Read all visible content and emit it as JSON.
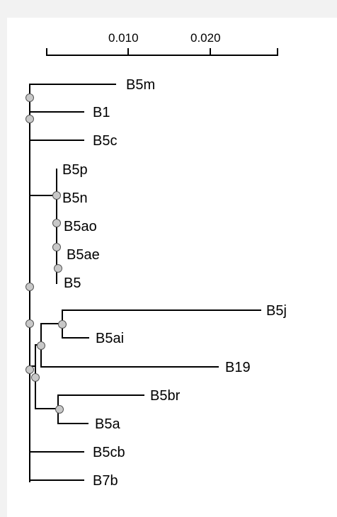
{
  "scale_axis": {
    "tick_labels": [
      "0.010",
      "0.020"
    ]
  },
  "tree": {
    "leaves": [
      {
        "id": "B5m",
        "label": "B5m"
      },
      {
        "id": "B1",
        "label": "B1"
      },
      {
        "id": "B5c",
        "label": "B5c"
      },
      {
        "id": "B5p",
        "label": "B5p"
      },
      {
        "id": "B5n",
        "label": "B5n"
      },
      {
        "id": "B5ao",
        "label": "B5ao"
      },
      {
        "id": "B5ae",
        "label": "B5ae"
      },
      {
        "id": "B5",
        "label": "B5"
      },
      {
        "id": "B5j",
        "label": "B5j"
      },
      {
        "id": "B5ai",
        "label": "B5ai"
      },
      {
        "id": "B19",
        "label": "B19"
      },
      {
        "id": "B5br",
        "label": "B5br"
      },
      {
        "id": "B5a",
        "label": "B5a"
      },
      {
        "id": "B5cb",
        "label": "B5cb"
      },
      {
        "id": "B7b",
        "label": "B7b"
      }
    ]
  },
  "colors": {
    "background": "#f2f2f2",
    "panel": "#ffffff",
    "line": "#000000",
    "node_fill": "#c8c8c8",
    "node_stroke": "#555555"
  }
}
